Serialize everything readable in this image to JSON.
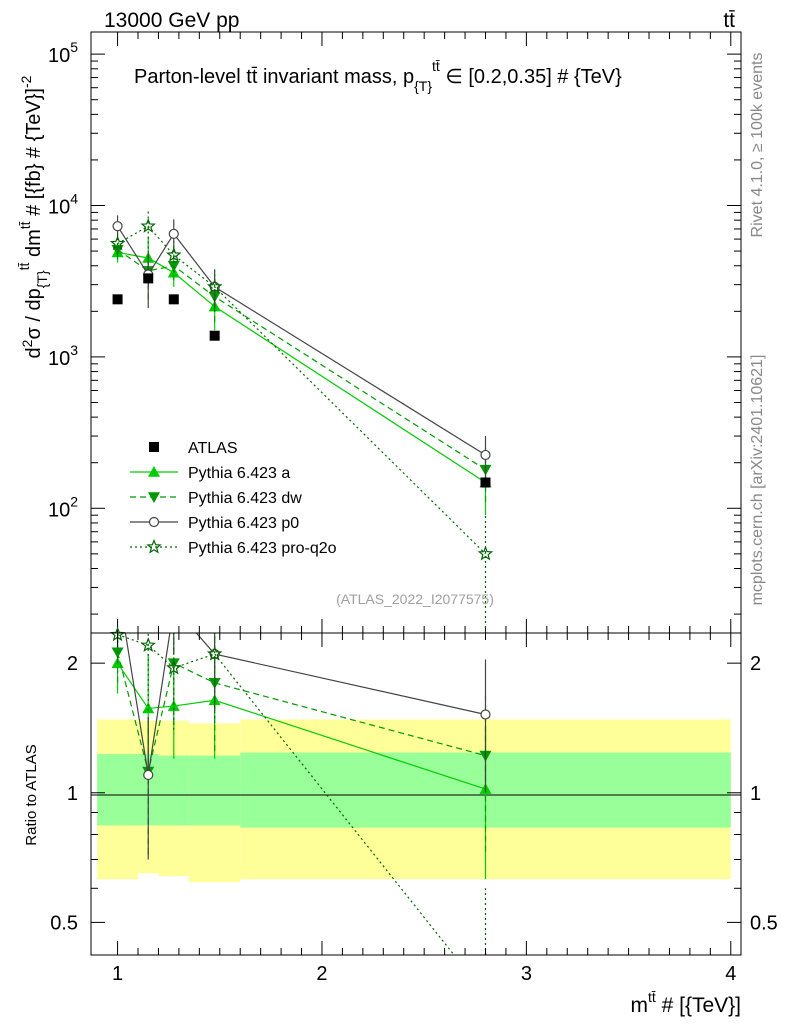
{
  "header": {
    "energy_label": "13000 GeV pp",
    "process_label": "tt̄"
  },
  "side_labels": {
    "rivet": "Rivet 4.1.0, ≥ 100k events",
    "mcplots": "mcplots.cern.ch [arXiv:2401.10621]"
  },
  "chart_data": [
    {
      "panel": "main",
      "type": "line",
      "title": "Parton-level tt̄ invariant mass, p{T}tt̄ ∈ [0.2,0.35] # {TeV}",
      "title_parts": {
        "main": "Parton-level tt̄ invariant mass, p",
        "sub": "{T}",
        "sup": "tt̄",
        "rest": " ∈ [0.2,0.35] # {TeV}"
      },
      "watermark": "(ATLAS_2022_I2077575)",
      "ylabel": "d²σ / dp{T}tt̄ dmtt̄ # [{fb} # {TeV}]⁻²",
      "ylabel_parts": {
        "a": "d",
        "b": "2",
        "c": "σ / dp",
        "d": "{T}",
        "e": "tt̄",
        "f": " dm",
        "g": "tt̄",
        "h": " # [{fb} # {TeV}]",
        "i": "-2"
      },
      "yscale": "log",
      "ylim": [
        15,
        140000
      ],
      "xlim": [
        0.87,
        4.05
      ],
      "y_ticks": [
        {
          "value": 100,
          "base": "10",
          "exp": "2"
        },
        {
          "value": 1000,
          "base": "10",
          "exp": "3"
        },
        {
          "value": 10000,
          "base": "10",
          "exp": "4"
        },
        {
          "value": 100000,
          "base": "10",
          "exp": "5"
        }
      ],
      "legend_position": "bottom-left",
      "x": [
        1.0,
        1.15,
        1.275,
        1.475,
        2.8
      ],
      "data": {
        "name": "ATLAS",
        "x": [
          1.0,
          1.15,
          1.275,
          1.475,
          2.8
        ],
        "xerr": [
          0.0,
          0.0,
          0.0,
          0.0,
          0.0
        ],
        "y": [
          2400,
          3300,
          2400,
          1380,
          148
        ]
      },
      "series": [
        {
          "name": "Pythia 6.423 a",
          "color": "#00cc00",
          "dash": "solid",
          "marker": "triangle-up",
          "y": [
            4900,
            4500,
            3600,
            2150,
            148
          ],
          "ylow": [
            4200,
            3000,
            2900,
            1500,
            90
          ],
          "yhigh": [
            5600,
            6200,
            4300,
            2800,
            210
          ]
        },
        {
          "name": "Pythia 6.423 dw",
          "color": "#009900",
          "dash": "dashed",
          "marker": "triangle-down",
          "y": [
            5100,
            3700,
            4000,
            2500,
            180
          ],
          "ylow": [
            4400,
            2400,
            3200,
            1700,
            110
          ],
          "yhigh": [
            5800,
            5000,
            4800,
            3300,
            250
          ]
        },
        {
          "name": "Pythia 6.423 p0",
          "color": "#444444",
          "dash": "solid",
          "marker": "circle-open",
          "y": [
            7300,
            3500,
            6500,
            2900,
            225
          ],
          "ylow": [
            6100,
            2100,
            5000,
            2100,
            150
          ],
          "yhigh": [
            8600,
            5000,
            8100,
            3700,
            300
          ]
        },
        {
          "name": "Pythia 6.423 pro-q2o",
          "color": "#006600",
          "dash": "dotted",
          "marker": "star-open",
          "y": [
            5600,
            7300,
            4700,
            2900,
            50
          ],
          "ylow": [
            4700,
            5200,
            3600,
            2000,
            14
          ],
          "yhigh": [
            6500,
            9400,
            5800,
            3800,
            90
          ]
        }
      ]
    },
    {
      "panel": "ratio",
      "type": "line",
      "ylabel": "Ratio to ATLAS",
      "xlabel": "mtt̄ # [{TeV}]",
      "xlabel_parts": {
        "a": "m",
        "b": "tt̄",
        "c": " # [{TeV}]"
      },
      "yscale": "log",
      "ylim": [
        0.42,
        2.35
      ],
      "xlim": [
        0.87,
        4.05
      ],
      "x_ticks": [
        {
          "value": 1,
          "label": "1"
        },
        {
          "value": 2,
          "label": "2"
        },
        {
          "value": 3,
          "label": "3"
        },
        {
          "value": 4,
          "label": "4"
        }
      ],
      "y_ticks": [
        {
          "value": 0.5,
          "label": "0.5"
        },
        {
          "value": 1,
          "label": "1"
        },
        {
          "value": 2,
          "label": "2"
        }
      ],
      "bands": [
        {
          "x0": 0.9,
          "x1": 1.1,
          "inner": [
            0.84,
            1.23
          ],
          "outer": [
            0.63,
            1.48
          ]
        },
        {
          "x0": 1.1,
          "x1": 1.2,
          "inner": [
            0.84,
            1.23
          ],
          "outer": [
            0.65,
            1.47
          ]
        },
        {
          "x0": 1.2,
          "x1": 1.35,
          "inner": [
            0.84,
            1.22
          ],
          "outer": [
            0.64,
            1.47
          ]
        },
        {
          "x0": 1.35,
          "x1": 1.6,
          "inner": [
            0.84,
            1.22
          ],
          "outer": [
            0.62,
            1.45
          ]
        },
        {
          "x0": 1.6,
          "x1": 4.0,
          "inner": [
            0.83,
            1.24
          ],
          "outer": [
            0.63,
            1.48
          ]
        }
      ],
      "x": [
        1.0,
        1.15,
        1.275,
        1.475,
        2.8
      ],
      "series": [
        {
          "name": "Pythia 6.423 a",
          "color": "#00cc00",
          "dash": "solid",
          "marker": "triangle-up",
          "y": [
            2.0,
            1.57,
            1.59,
            1.64,
            1.02
          ],
          "ylow": [
            1.7,
            1.05,
            1.2,
            1.2,
            0.63
          ],
          "yhigh": [
            2.3,
            2.1,
            2.0,
            2.1,
            1.42
          ]
        },
        {
          "name": "Pythia 6.423 dw",
          "color": "#009900",
          "dash": "dashed",
          "marker": "triangle-down",
          "y": [
            2.12,
            1.12,
            2.0,
            1.8,
            1.22
          ],
          "ylow": [
            1.8,
            0.72,
            1.45,
            1.25,
            0.73
          ],
          "yhigh": [
            2.4,
            1.5,
            2.4,
            2.3,
            1.7
          ]
        },
        {
          "name": "Pythia 6.423 p0",
          "color": "#444444",
          "dash": "solid",
          "marker": "circle-open",
          "y": [
            3.05,
            1.1,
            2.7,
            2.1,
            1.52
          ],
          "ylow": [
            2.5,
            0.7,
            2.1,
            1.55,
            1.0
          ],
          "yhigh": [
            3.6,
            1.5,
            3.4,
            2.7,
            2.04
          ]
        },
        {
          "name": "Pythia 6.423 pro-q2o",
          "color": "#006600",
          "dash": "dotted",
          "marker": "star-open",
          "y": [
            2.33,
            2.2,
            1.95,
            2.1,
            0.34
          ],
          "ylow": [
            2.0,
            1.55,
            1.4,
            1.45,
            0.1
          ],
          "yhigh": [
            2.7,
            2.8,
            2.5,
            2.7,
            0.6
          ]
        }
      ]
    }
  ]
}
